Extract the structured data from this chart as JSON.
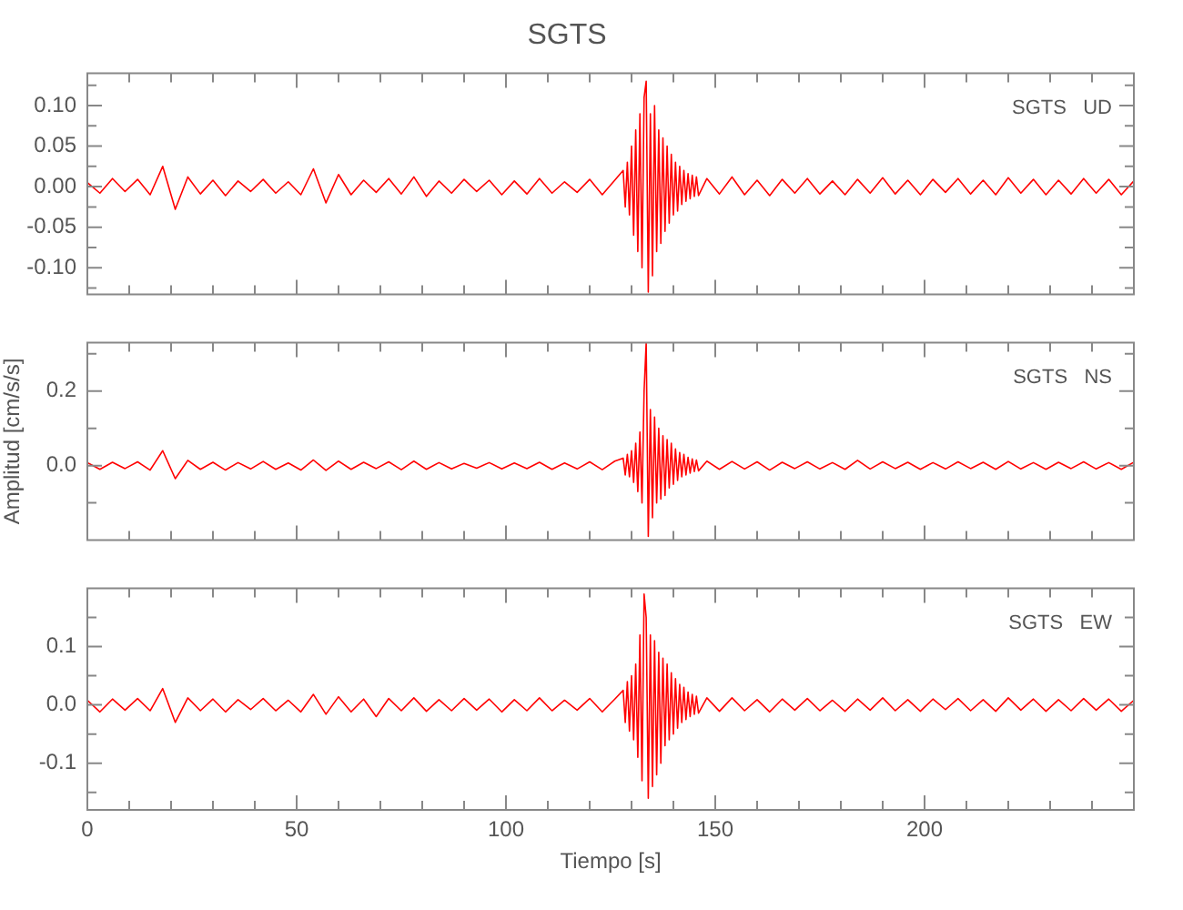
{
  "chart_data": [
    {
      "type": "line",
      "title": "SGTS",
      "annotations": [
        "SGTS   UD"
      ],
      "tick_labels": "y",
      "grid": false,
      "legend": false,
      "marker": "none",
      "line_style": "solid",
      "xlim": [
        0,
        250
      ],
      "ylim": [
        -0.133,
        0.14
      ],
      "xticks": [
        0,
        {
          "value": 10,
          "label": null
        },
        {
          "value": 20,
          "label": null
        },
        {
          "value": 30,
          "label": null
        },
        {
          "value": 40,
          "label": null
        },
        50,
        {
          "value": 60,
          "label": null
        },
        {
          "value": 70,
          "label": null
        },
        {
          "value": 80,
          "label": null
        },
        {
          "value": 90,
          "label": null
        },
        100,
        {
          "value": 110,
          "label": null
        },
        {
          "value": 120,
          "label": null
        },
        {
          "value": 130,
          "label": null
        },
        {
          "value": 140,
          "label": null
        },
        150,
        {
          "value": 160,
          "label": null
        },
        {
          "value": 170,
          "label": null
        },
        {
          "value": 180,
          "label": null
        },
        {
          "value": 190,
          "label": null
        },
        200,
        {
          "value": 210,
          "label": null
        },
        {
          "value": 220,
          "label": null
        },
        {
          "value": 230,
          "label": null
        },
        {
          "value": 240,
          "label": null
        }
      ],
      "yticks": [
        {
          "value": -0.125,
          "label": null
        },
        {
          "value": -0.1,
          "label": "-0.10"
        },
        {
          "value": -0.075,
          "label": null
        },
        {
          "value": -0.05,
          "label": "-0.05"
        },
        {
          "value": -0.025,
          "label": null
        },
        {
          "value": 0,
          "label": "0.00"
        },
        {
          "value": 0.025,
          "label": null
        },
        {
          "value": 0.05,
          "label": "0.05"
        },
        {
          "value": 0.075,
          "label": null
        },
        {
          "value": 0.1,
          "label": "0.10"
        },
        {
          "value": 0.125,
          "label": null
        }
      ],
      "x": [
        0,
        3,
        6,
        9,
        12,
        15,
        18,
        21,
        24,
        27,
        30,
        33,
        36,
        39,
        42,
        45,
        48,
        51,
        54,
        57,
        60,
        63,
        66,
        69,
        72,
        75,
        78,
        81,
        84,
        87,
        90,
        93,
        96,
        99,
        102,
        105,
        108,
        111,
        114,
        117,
        120,
        123,
        126,
        128,
        128.5,
        129,
        129.5,
        130,
        130.5,
        131,
        131.5,
        132,
        132.5,
        133,
        133.5,
        134,
        134.5,
        135,
        135.5,
        136,
        136.5,
        137,
        137.5,
        138,
        138.5,
        139,
        139.5,
        140,
        140.5,
        141,
        141.5,
        142,
        142.5,
        143,
        143.5,
        144,
        144.5,
        145,
        145.5,
        146,
        148,
        151,
        154,
        157,
        160,
        163,
        166,
        169,
        172,
        175,
        178,
        181,
        184,
        187,
        190,
        193,
        196,
        199,
        202,
        205,
        208,
        211,
        214,
        217,
        220,
        223,
        226,
        229,
        232,
        235,
        238,
        241,
        244,
        247,
        250
      ],
      "series": [
        {
          "color": "#ff0000",
          "values": [
            0.005,
            -0.008,
            0.01,
            -0.006,
            0.009,
            -0.01,
            0.025,
            -0.028,
            0.012,
            -0.009,
            0.008,
            -0.011,
            0.007,
            -0.006,
            0.009,
            -0.008,
            0.006,
            -0.01,
            0.022,
            -0.02,
            0.015,
            -0.01,
            0.008,
            -0.007,
            0.01,
            -0.009,
            0.012,
            -0.012,
            0.007,
            -0.008,
            0.009,
            -0.006,
            0.008,
            -0.01,
            0.007,
            -0.009,
            0.01,
            -0.008,
            0.006,
            -0.007,
            0.009,
            -0.01,
            0.008,
            0.02,
            -0.025,
            0.03,
            -0.035,
            0.05,
            -0.06,
            0.07,
            -0.08,
            0.09,
            -0.1,
            0.11,
            0.13,
            -0.13,
            0.09,
            -0.11,
            0.1,
            -0.08,
            0.07,
            -0.07,
            0.06,
            -0.055,
            0.05,
            -0.045,
            0.04,
            -0.035,
            0.03,
            -0.03,
            0.025,
            -0.022,
            0.02,
            -0.018,
            0.016,
            -0.015,
            0.014,
            -0.012,
            0.012,
            -0.011,
            0.01,
            -0.009,
            0.012,
            -0.01,
            0.008,
            -0.011,
            0.009,
            -0.008,
            0.01,
            -0.009,
            0.007,
            -0.01,
            0.009,
            -0.008,
            0.011,
            -0.009,
            0.008,
            -0.01,
            0.009,
            -0.007,
            0.01,
            -0.009,
            0.008,
            -0.01,
            0.011,
            -0.008,
            0.009,
            -0.01,
            0.008,
            -0.009,
            0.01,
            -0.008,
            0.009,
            -0.01,
            0.007
          ]
        }
      ]
    },
    {
      "type": "line",
      "ylabel": "Amplitud [cm/s/s]",
      "annotations": [
        "SGTS   NS"
      ],
      "tick_labels": "y",
      "grid": false,
      "legend": false,
      "marker": "none",
      "line_style": "solid",
      "xlim": [
        0,
        250
      ],
      "ylim": [
        -0.2,
        0.33
      ],
      "xticks": [
        0,
        {
          "value": 10,
          "label": null
        },
        {
          "value": 20,
          "label": null
        },
        {
          "value": 30,
          "label": null
        },
        {
          "value": 40,
          "label": null
        },
        50,
        {
          "value": 60,
          "label": null
        },
        {
          "value": 70,
          "label": null
        },
        {
          "value": 80,
          "label": null
        },
        {
          "value": 90,
          "label": null
        },
        100,
        {
          "value": 110,
          "label": null
        },
        {
          "value": 120,
          "label": null
        },
        {
          "value": 130,
          "label": null
        },
        {
          "value": 140,
          "label": null
        },
        150,
        {
          "value": 160,
          "label": null
        },
        {
          "value": 170,
          "label": null
        },
        {
          "value": 180,
          "label": null
        },
        {
          "value": 190,
          "label": null
        },
        200,
        {
          "value": 210,
          "label": null
        },
        {
          "value": 220,
          "label": null
        },
        {
          "value": 230,
          "label": null
        },
        {
          "value": 240,
          "label": null
        }
      ],
      "yticks": [
        {
          "value": -0.1,
          "label": null
        },
        {
          "value": 0,
          "label": "0.0"
        },
        {
          "value": 0.1,
          "label": null
        },
        {
          "value": 0.2,
          "label": "0.2"
        },
        {
          "value": 0.3,
          "label": null
        }
      ],
      "x": [
        0,
        3,
        6,
        9,
        12,
        15,
        18,
        21,
        24,
        27,
        30,
        33,
        36,
        39,
        42,
        45,
        48,
        51,
        54,
        57,
        60,
        63,
        66,
        69,
        72,
        75,
        78,
        81,
        84,
        87,
        90,
        93,
        96,
        99,
        102,
        105,
        108,
        111,
        114,
        117,
        120,
        123,
        126,
        128,
        128.5,
        129,
        129.5,
        130,
        130.5,
        131,
        131.5,
        132,
        132.5,
        133,
        133.5,
        134,
        134.5,
        135,
        135.5,
        136,
        136.5,
        137,
        137.5,
        138,
        138.5,
        139,
        139.5,
        140,
        140.5,
        141,
        141.5,
        142,
        142.5,
        143,
        143.5,
        144,
        144.5,
        145,
        145.5,
        146,
        148,
        151,
        154,
        157,
        160,
        163,
        166,
        169,
        172,
        175,
        178,
        181,
        184,
        187,
        190,
        193,
        196,
        199,
        202,
        205,
        208,
        211,
        214,
        217,
        220,
        223,
        226,
        229,
        232,
        235,
        238,
        241,
        244,
        247,
        250
      ],
      "series": [
        {
          "color": "#ff0000",
          "values": [
            0.008,
            -0.01,
            0.009,
            -0.008,
            0.01,
            -0.012,
            0.04,
            -0.035,
            0.014,
            -0.01,
            0.009,
            -0.012,
            0.008,
            -0.009,
            0.011,
            -0.01,
            0.007,
            -0.012,
            0.015,
            -0.013,
            0.012,
            -0.01,
            0.009,
            -0.008,
            0.01,
            -0.011,
            0.012,
            -0.01,
            0.008,
            -0.009,
            0.006,
            -0.007,
            0.008,
            -0.009,
            0.007,
            -0.008,
            0.009,
            -0.01,
            0.007,
            -0.009,
            0.01,
            -0.011,
            0.012,
            0.02,
            -0.025,
            0.03,
            -0.03,
            0.04,
            -0.045,
            0.06,
            -0.07,
            0.09,
            -0.1,
            0.2,
            0.33,
            -0.19,
            0.15,
            -0.14,
            0.13,
            -0.1,
            0.1,
            -0.09,
            0.08,
            -0.08,
            0.07,
            -0.06,
            0.06,
            -0.05,
            0.045,
            -0.04,
            0.035,
            -0.03,
            0.03,
            -0.025,
            0.022,
            -0.02,
            0.018,
            -0.016,
            0.015,
            -0.014,
            0.012,
            -0.01,
            0.011,
            -0.009,
            0.01,
            -0.012,
            0.009,
            -0.008,
            0.01,
            -0.009,
            0.008,
            -0.01,
            0.014,
            -0.009,
            0.01,
            -0.008,
            0.009,
            -0.01,
            0.008,
            -0.009,
            0.01,
            -0.008,
            0.009,
            -0.01,
            0.011,
            -0.009,
            0.008,
            -0.01,
            0.009,
            -0.008,
            0.01,
            -0.009,
            0.008,
            -0.01,
            0.009
          ]
        }
      ]
    },
    {
      "type": "line",
      "xlabel": "Tiempo [s]",
      "annotations": [
        "SGTS   EW"
      ],
      "grid": false,
      "legend": false,
      "marker": "none",
      "line_style": "solid",
      "xlim": [
        0,
        250
      ],
      "ylim": [
        -0.18,
        0.2
      ],
      "xticks": [
        0,
        {
          "value": 10,
          "label": null
        },
        {
          "value": 20,
          "label": null
        },
        {
          "value": 30,
          "label": null
        },
        {
          "value": 40,
          "label": null
        },
        50,
        {
          "value": 60,
          "label": null
        },
        {
          "value": 70,
          "label": null
        },
        {
          "value": 80,
          "label": null
        },
        {
          "value": 90,
          "label": null
        },
        100,
        {
          "value": 110,
          "label": null
        },
        {
          "value": 120,
          "label": null
        },
        {
          "value": 130,
          "label": null
        },
        {
          "value": 140,
          "label": null
        },
        150,
        {
          "value": 160,
          "label": null
        },
        {
          "value": 170,
          "label": null
        },
        {
          "value": 180,
          "label": null
        },
        {
          "value": 190,
          "label": null
        },
        200,
        {
          "value": 210,
          "label": null
        },
        {
          "value": 220,
          "label": null
        },
        {
          "value": 230,
          "label": null
        },
        {
          "value": 240,
          "label": null
        }
      ],
      "yticks": [
        {
          "value": -0.15,
          "label": null
        },
        {
          "value": -0.1,
          "label": "-0.1"
        },
        {
          "value": -0.05,
          "label": null
        },
        {
          "value": 0,
          "label": "0.0"
        },
        {
          "value": 0.05,
          "label": null
        },
        {
          "value": 0.1,
          "label": "0.1"
        },
        {
          "value": 0.15,
          "label": null
        }
      ],
      "x": [
        0,
        3,
        6,
        9,
        12,
        15,
        18,
        21,
        24,
        27,
        30,
        33,
        36,
        39,
        42,
        45,
        48,
        51,
        54,
        57,
        60,
        63,
        66,
        69,
        72,
        75,
        78,
        81,
        84,
        87,
        90,
        93,
        96,
        99,
        102,
        105,
        108,
        111,
        114,
        117,
        120,
        123,
        126,
        128,
        128.5,
        129,
        129.5,
        130,
        130.5,
        131,
        131.5,
        132,
        132.5,
        133,
        133.5,
        134,
        134.5,
        135,
        135.5,
        136,
        136.5,
        137,
        137.5,
        138,
        138.5,
        139,
        139.5,
        140,
        140.5,
        141,
        141.5,
        142,
        142.5,
        143,
        143.5,
        144,
        144.5,
        145,
        145.5,
        146,
        148,
        151,
        154,
        157,
        160,
        163,
        166,
        169,
        172,
        175,
        178,
        181,
        184,
        187,
        190,
        193,
        196,
        199,
        202,
        205,
        208,
        211,
        214,
        217,
        220,
        223,
        226,
        229,
        232,
        235,
        238,
        241,
        244,
        247,
        250
      ],
      "series": [
        {
          "color": "#ff0000",
          "values": [
            0.008,
            -0.012,
            0.01,
            -0.009,
            0.011,
            -0.01,
            0.028,
            -0.03,
            0.012,
            -0.01,
            0.01,
            -0.012,
            0.009,
            -0.008,
            0.011,
            -0.01,
            0.008,
            -0.012,
            0.018,
            -0.016,
            0.014,
            -0.012,
            0.01,
            -0.02,
            0.011,
            -0.01,
            0.012,
            -0.011,
            0.009,
            -0.01,
            0.011,
            -0.009,
            0.01,
            -0.012,
            0.009,
            -0.01,
            0.012,
            -0.01,
            0.008,
            -0.009,
            0.011,
            -0.012,
            0.01,
            0.025,
            -0.03,
            0.04,
            -0.045,
            0.05,
            -0.06,
            0.07,
            -0.09,
            0.12,
            -0.13,
            0.19,
            0.15,
            -0.16,
            0.12,
            -0.14,
            0.11,
            -0.12,
            0.09,
            -0.1,
            0.08,
            -0.07,
            0.07,
            -0.06,
            0.055,
            -0.05,
            0.045,
            -0.04,
            0.035,
            -0.03,
            0.03,
            -0.025,
            0.022,
            -0.02,
            0.018,
            -0.016,
            0.015,
            -0.014,
            0.012,
            -0.011,
            0.012,
            -0.01,
            0.009,
            -0.012,
            0.01,
            -0.009,
            0.011,
            -0.01,
            0.008,
            -0.011,
            0.01,
            -0.009,
            0.012,
            -0.01,
            0.009,
            -0.011,
            0.01,
            -0.008,
            0.011,
            -0.01,
            0.009,
            -0.011,
            0.012,
            -0.009,
            0.01,
            -0.011,
            0.009,
            -0.01,
            0.011,
            -0.009,
            0.01,
            -0.011,
            0.008
          ]
        }
      ]
    }
  ]
}
